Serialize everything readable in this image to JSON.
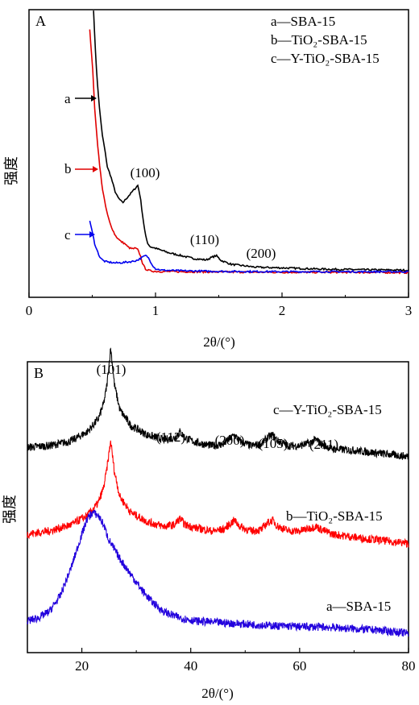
{
  "chart_data": [
    {
      "panel": "A",
      "type": "line",
      "xlabel": "2θ/(°)",
      "ylabel": "强度",
      "xlim": [
        0,
        3
      ],
      "xticks": [
        "0",
        "1",
        "2",
        "3"
      ],
      "legend_placement": "top-right",
      "legend": [
        "a—SBA-15",
        "b—TiO₂-SBA-15",
        "c—Y-TiO₂-SBA-15"
      ],
      "series": [
        {
          "name": "a",
          "color": "#000000",
          "x": [
            0.51,
            0.52,
            0.54,
            0.56,
            0.58,
            0.6,
            0.62,
            0.64,
            0.66,
            0.68,
            0.7,
            0.72,
            0.74,
            0.76,
            0.78,
            0.8,
            0.82,
            0.84,
            0.86,
            0.88,
            0.9,
            0.92,
            0.94,
            0.96,
            1.0,
            1.1,
            1.2,
            1.3,
            1.4,
            1.45,
            1.48,
            1.52,
            1.6,
            1.7,
            1.8,
            2.0,
            2.3,
            2.6,
            3.0
          ],
          "y": [
            100,
            90,
            75,
            65,
            57,
            52,
            46,
            44,
            41,
            38,
            36,
            35,
            34,
            35,
            36,
            37,
            38,
            39,
            40,
            36,
            29,
            23,
            20,
            19,
            18.5,
            17,
            16,
            15,
            14.5,
            15.5,
            16,
            14.3,
            13,
            12.5,
            12,
            11.8,
            11.4,
            11.2,
            11
          ]
        },
        {
          "name": "b",
          "color": "#e00000",
          "x": [
            0.48,
            0.5,
            0.52,
            0.54,
            0.56,
            0.58,
            0.6,
            0.62,
            0.64,
            0.66,
            0.68,
            0.7,
            0.72,
            0.74,
            0.76,
            0.78,
            0.8,
            0.82,
            0.84,
            0.86,
            0.88,
            0.9,
            0.92,
            0.94,
            0.96,
            1.0,
            1.2,
            1.5,
            2.0,
            2.5,
            3.0
          ],
          "y": [
            93,
            82,
            66,
            55,
            46,
            39,
            34,
            30,
            27,
            25,
            23,
            22,
            21,
            20.5,
            20,
            19,
            18.5,
            18.3,
            18.5,
            18,
            16,
            13,
            11.5,
            11,
            10.8,
            10.6,
            10.5,
            10.4,
            10.3,
            10.3,
            10.2
          ]
        },
        {
          "name": "c",
          "color": "#0000ee",
          "x": [
            0.48,
            0.5,
            0.52,
            0.54,
            0.56,
            0.58,
            0.6,
            0.62,
            0.64,
            0.66,
            0.68,
            0.7,
            0.74,
            0.78,
            0.82,
            0.86,
            0.9,
            0.92,
            0.94,
            0.96,
            0.98,
            1.0,
            1.05,
            1.2,
            1.5,
            2.0,
            2.5,
            3.0
          ],
          "y": [
            28,
            24,
            20,
            17.5,
            15.5,
            14.5,
            14,
            13.8,
            13.7,
            13.6,
            13.5,
            13.5,
            13.6,
            13.8,
            14,
            14.5,
            15.5,
            16,
            15.5,
            14,
            12.5,
            11.5,
            11,
            10.8,
            10.6,
            10.5,
            10.5,
            10.5
          ]
        }
      ],
      "annotations": [
        "(100)",
        "(110)",
        "(200)"
      ],
      "series_labels": [
        "a",
        "b",
        "c"
      ]
    },
    {
      "panel": "B",
      "type": "line",
      "xlabel": "2θ/(°)",
      "ylabel": "强度",
      "xlim": [
        10,
        80
      ],
      "xticks": [
        "20",
        "40",
        "60",
        "80"
      ],
      "series_labels": [
        "c—Y-TiO₂-SBA-15",
        "b—TiO₂-SBA-15",
        "a—SBA-15"
      ],
      "annotations": [
        "(101)",
        "(112)",
        "(200)",
        "(105)",
        "(211)"
      ],
      "series": [
        {
          "name": "c",
          "color": "#000000",
          "offset": 57,
          "x": [
            10,
            14,
            18,
            21,
            23,
            24,
            24.6,
            25.3,
            26,
            27,
            29,
            32,
            35,
            37,
            38,
            39,
            41,
            44,
            46,
            47,
            48,
            49,
            51,
            53,
            54,
            55,
            56,
            58,
            60,
            62,
            63,
            64,
            66,
            70,
            75,
            80
          ],
          "y": [
            4,
            4.5,
            6,
            9,
            13,
            18,
            24,
            36,
            24,
            16,
            11,
            8,
            6.5,
            7,
            9,
            7,
            5.5,
            4.5,
            5,
            6.5,
            8,
            6,
            4.5,
            5,
            7,
            8,
            6,
            4.5,
            4.5,
            5.5,
            6.5,
            5,
            3.5,
            3,
            2,
            1
          ]
        },
        {
          "name": "b",
          "color": "#ff0000",
          "offset": 30,
          "x": [
            10,
            14,
            18,
            21,
            23,
            24,
            24.6,
            25.3,
            26,
            27,
            29,
            32,
            35,
            37,
            38,
            39,
            41,
            44,
            46,
            47,
            48,
            49,
            51,
            53,
            54,
            55,
            56,
            58,
            60,
            62,
            63,
            64,
            66,
            70,
            75,
            80
          ],
          "y": [
            3,
            4,
            6,
            9,
            13,
            18,
            24,
            33,
            23,
            15,
            10,
            7,
            5.5,
            6,
            8,
            6,
            5,
            4,
            4.5,
            6,
            7.5,
            5.5,
            4,
            4.5,
            6.5,
            7.5,
            5.5,
            4,
            4,
            5,
            5.5,
            4.5,
            3,
            2,
            1,
            0
          ]
        },
        {
          "name": "a",
          "color": "#2200dd",
          "offset": 0,
          "x": [
            10,
            12,
            14,
            16,
            18,
            20,
            21,
            22,
            23,
            24,
            25,
            27,
            29,
            31,
            33,
            35,
            38,
            41,
            45,
            50,
            55,
            60,
            65,
            70,
            75,
            80
          ],
          "y": [
            5,
            6,
            8,
            13,
            22,
            33,
            38,
            40,
            39,
            36,
            31,
            25,
            20,
            15,
            11,
            8,
            6,
            5,
            4.5,
            4,
            3.5,
            3.2,
            3,
            2.5,
            2,
            1
          ]
        }
      ]
    }
  ]
}
